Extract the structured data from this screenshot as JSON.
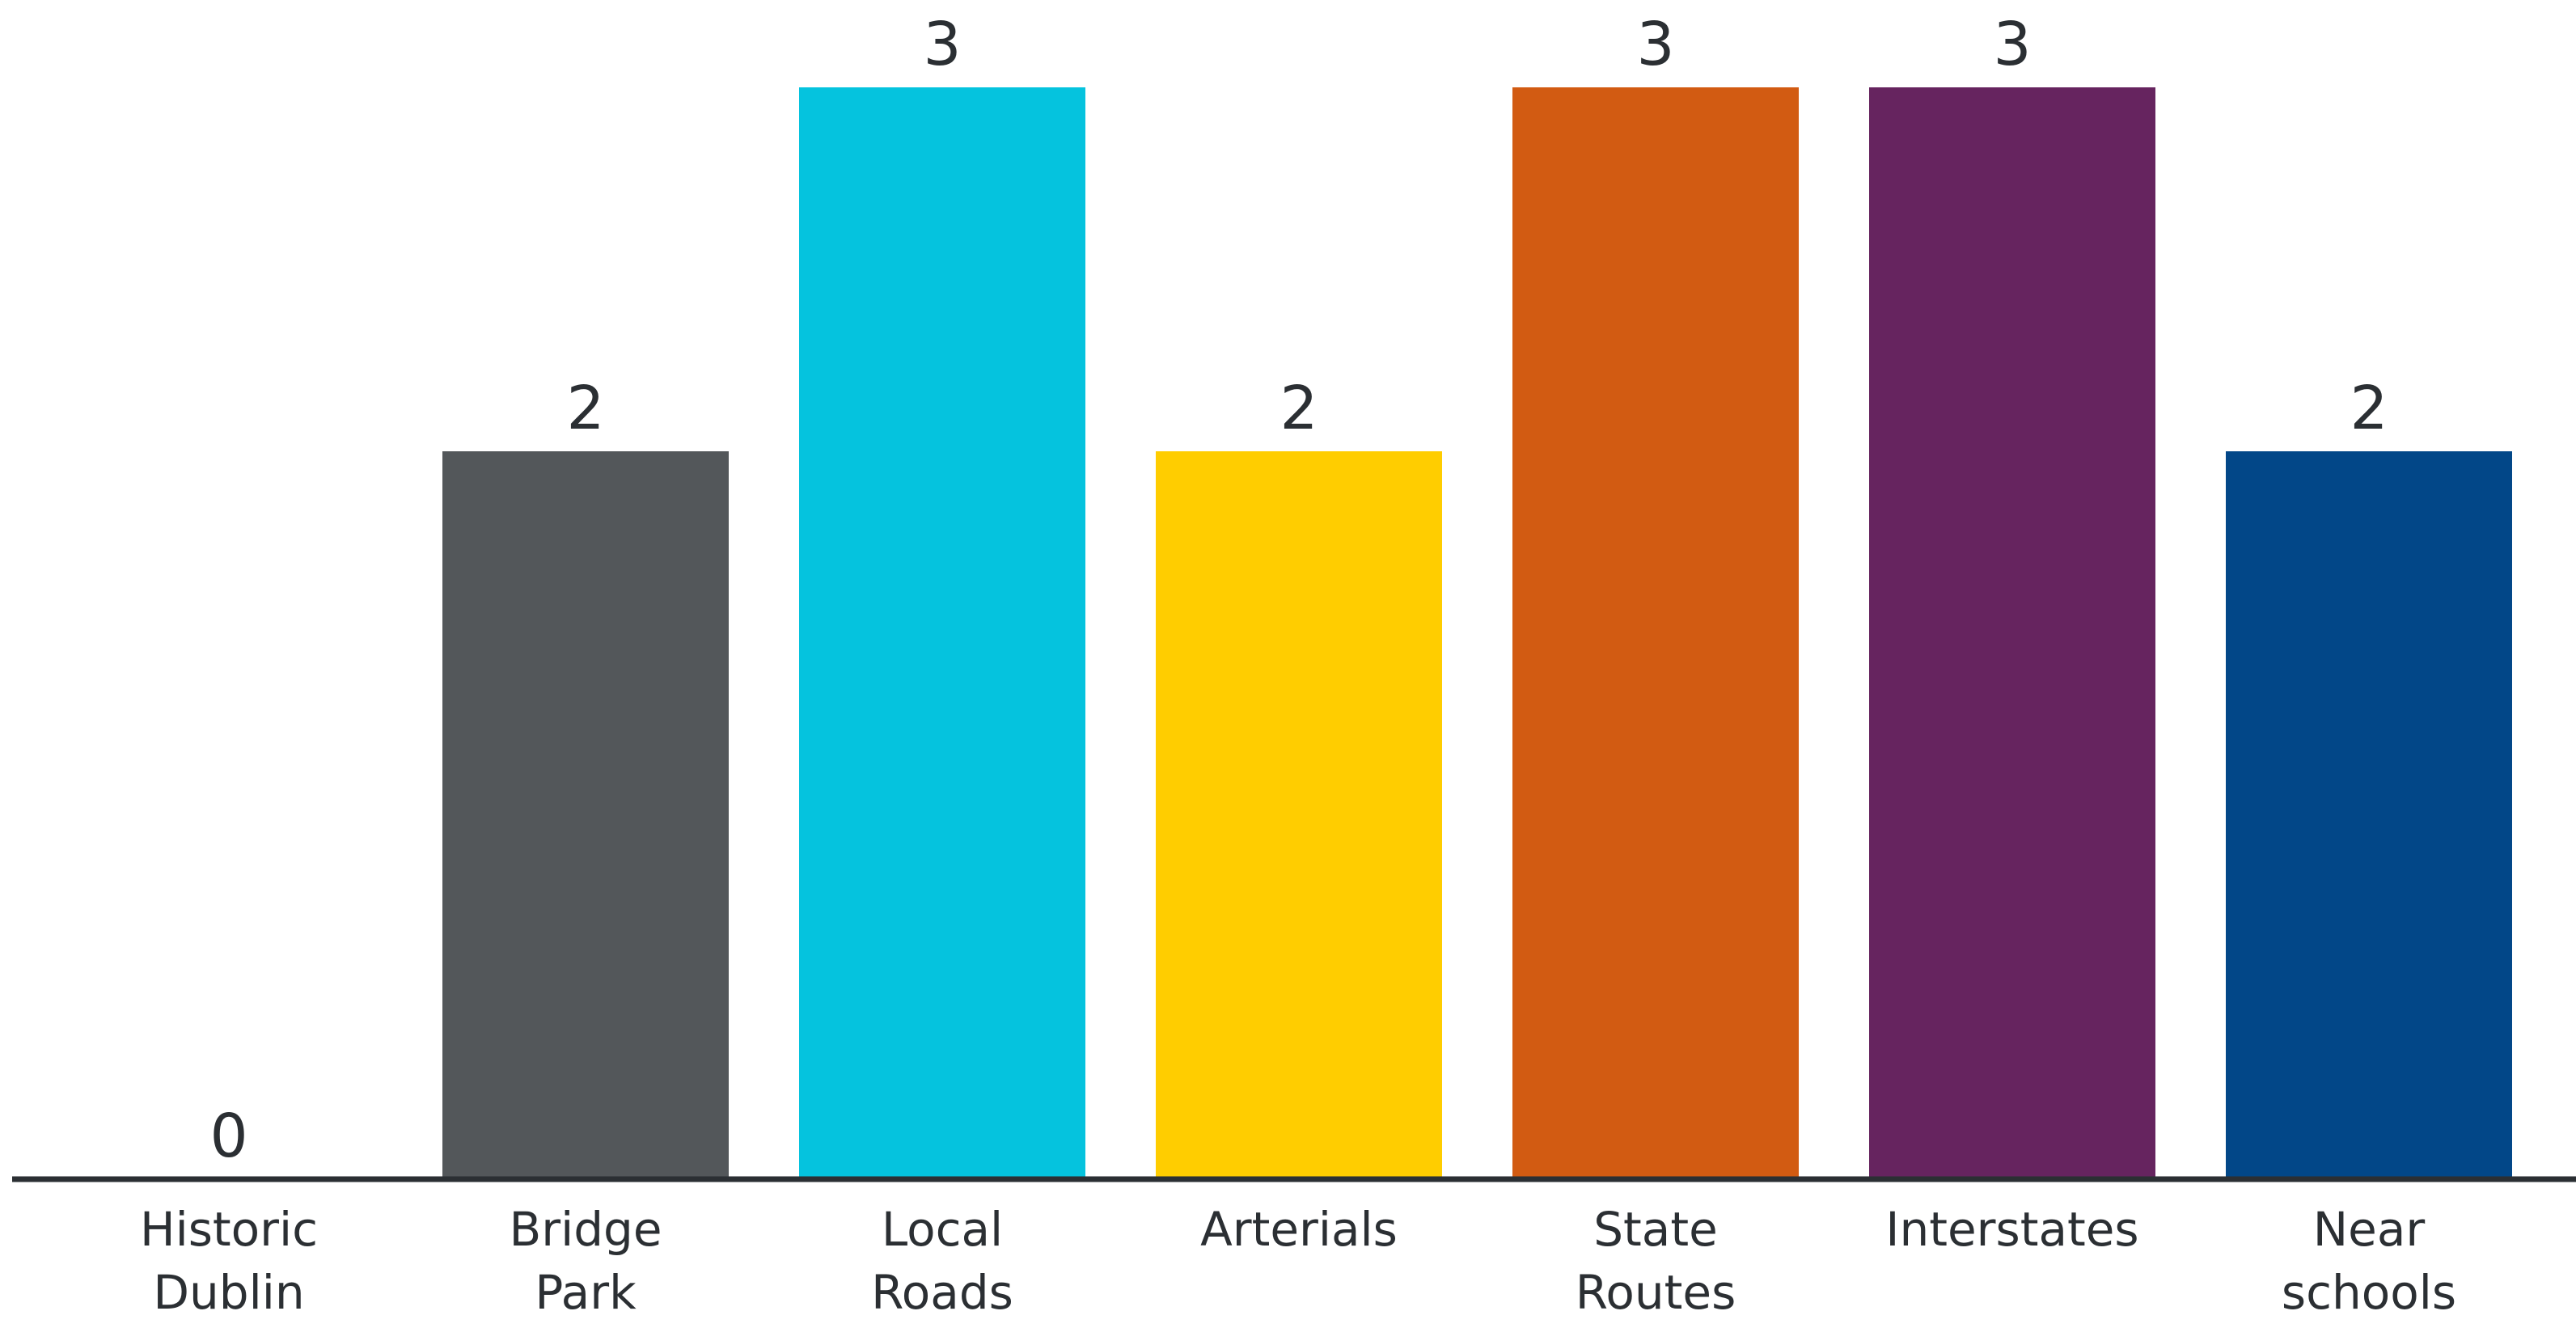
{
  "chart_data": {
    "type": "bar",
    "title": "",
    "xlabel": "",
    "ylabel": "",
    "ylim": [
      0,
      3
    ],
    "grid": false,
    "legend": "none",
    "categories": [
      [
        "Historic",
        "Dublin"
      ],
      [
        "Bridge",
        "Park"
      ],
      [
        "Local",
        "Roads"
      ],
      [
        "Arterials"
      ],
      [
        "State",
        "Routes"
      ],
      [
        "Interstates"
      ],
      [
        "Near",
        "schools"
      ]
    ],
    "values": [
      0,
      2,
      3,
      2,
      3,
      3,
      2
    ],
    "colors": [
      "#53575a",
      "#53575a",
      "#05c3de",
      "#ffcd00",
      "#d25b12",
      "#66245f",
      "#024788"
    ],
    "axis_color": "#2b2f33"
  }
}
